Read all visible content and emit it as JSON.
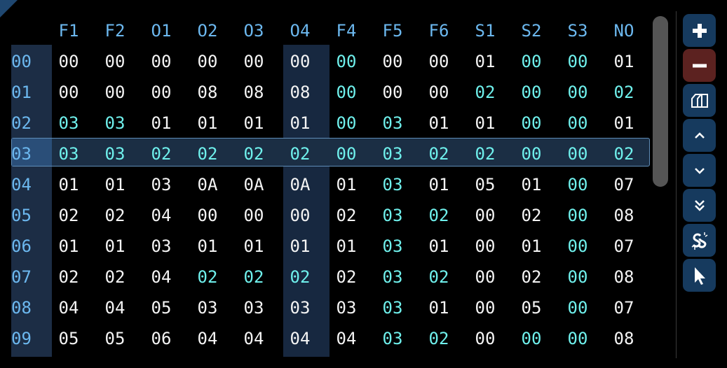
{
  "columns": [
    "F1",
    "F2",
    "O1",
    "O2",
    "O3",
    "O4",
    "F4",
    "F5",
    "F6",
    "S1",
    "S2",
    "S3",
    "NO"
  ],
  "highlighted_column": "O4",
  "selected_row": "03",
  "colors": {
    "header": "#6cb8ef",
    "value": "#f4f4f4",
    "value_alt": "#6ff0ec",
    "selection": "#5f8db8",
    "add": "#163a5e",
    "remove": "#5c2220"
  },
  "rows": [
    {
      "label": "00",
      "cells": [
        "00",
        "00",
        "00",
        "00",
        "00",
        "00",
        "00",
        "00",
        "00",
        "01",
        "00",
        "00",
        "01"
      ],
      "alt": [
        6,
        10,
        11
      ]
    },
    {
      "label": "01",
      "cells": [
        "00",
        "00",
        "00",
        "08",
        "08",
        "08",
        "00",
        "00",
        "00",
        "02",
        "00",
        "00",
        "02"
      ],
      "alt": [
        6,
        9,
        10,
        11,
        12
      ]
    },
    {
      "label": "02",
      "cells": [
        "03",
        "03",
        "01",
        "01",
        "01",
        "01",
        "00",
        "03",
        "01",
        "01",
        "00",
        "00",
        "01"
      ],
      "alt": [
        0,
        1,
        6,
        7,
        10,
        11
      ]
    },
    {
      "label": "03",
      "cells": [
        "03",
        "03",
        "02",
        "02",
        "02",
        "02",
        "00",
        "03",
        "02",
        "02",
        "00",
        "00",
        "02"
      ],
      "alt": [
        0,
        1,
        2,
        3,
        4,
        5,
        6,
        7,
        8,
        9,
        10,
        11,
        12
      ]
    },
    {
      "label": "04",
      "cells": [
        "01",
        "01",
        "03",
        "0A",
        "0A",
        "0A",
        "01",
        "03",
        "01",
        "05",
        "01",
        "00",
        "07"
      ],
      "alt": [
        7,
        11
      ]
    },
    {
      "label": "05",
      "cells": [
        "02",
        "02",
        "04",
        "00",
        "00",
        "00",
        "02",
        "03",
        "02",
        "00",
        "02",
        "00",
        "08"
      ],
      "alt": [
        7,
        8,
        11
      ]
    },
    {
      "label": "06",
      "cells": [
        "01",
        "01",
        "03",
        "01",
        "01",
        "01",
        "01",
        "03",
        "01",
        "00",
        "01",
        "00",
        "07"
      ],
      "alt": [
        7,
        11
      ]
    },
    {
      "label": "07",
      "cells": [
        "02",
        "02",
        "04",
        "02",
        "02",
        "02",
        "02",
        "03",
        "02",
        "00",
        "02",
        "00",
        "08"
      ],
      "alt": [
        3,
        4,
        5,
        7,
        8,
        11
      ]
    },
    {
      "label": "08",
      "cells": [
        "04",
        "04",
        "05",
        "03",
        "03",
        "03",
        "03",
        "03",
        "01",
        "00",
        "05",
        "00",
        "07"
      ],
      "alt": [
        7,
        11
      ]
    },
    {
      "label": "09",
      "cells": [
        "05",
        "05",
        "06",
        "04",
        "04",
        "04",
        "04",
        "03",
        "02",
        "00",
        "00",
        "00",
        "08"
      ],
      "alt": [
        7,
        8,
        10,
        11
      ]
    }
  ],
  "toolbar": [
    {
      "name": "add-button",
      "icon": "plus-icon"
    },
    {
      "name": "remove-button",
      "icon": "minus-icon"
    },
    {
      "name": "duplicate-button",
      "icon": "copy-icon"
    },
    {
      "name": "move-up-button",
      "icon": "chevron-up-icon"
    },
    {
      "name": "move-down-button",
      "icon": "chevron-down-icon"
    },
    {
      "name": "move-bottom-button",
      "icon": "double-chevron-down-icon"
    },
    {
      "name": "unlink-button",
      "icon": "unlink-icon"
    },
    {
      "name": "select-button",
      "icon": "cursor-icon"
    }
  ]
}
